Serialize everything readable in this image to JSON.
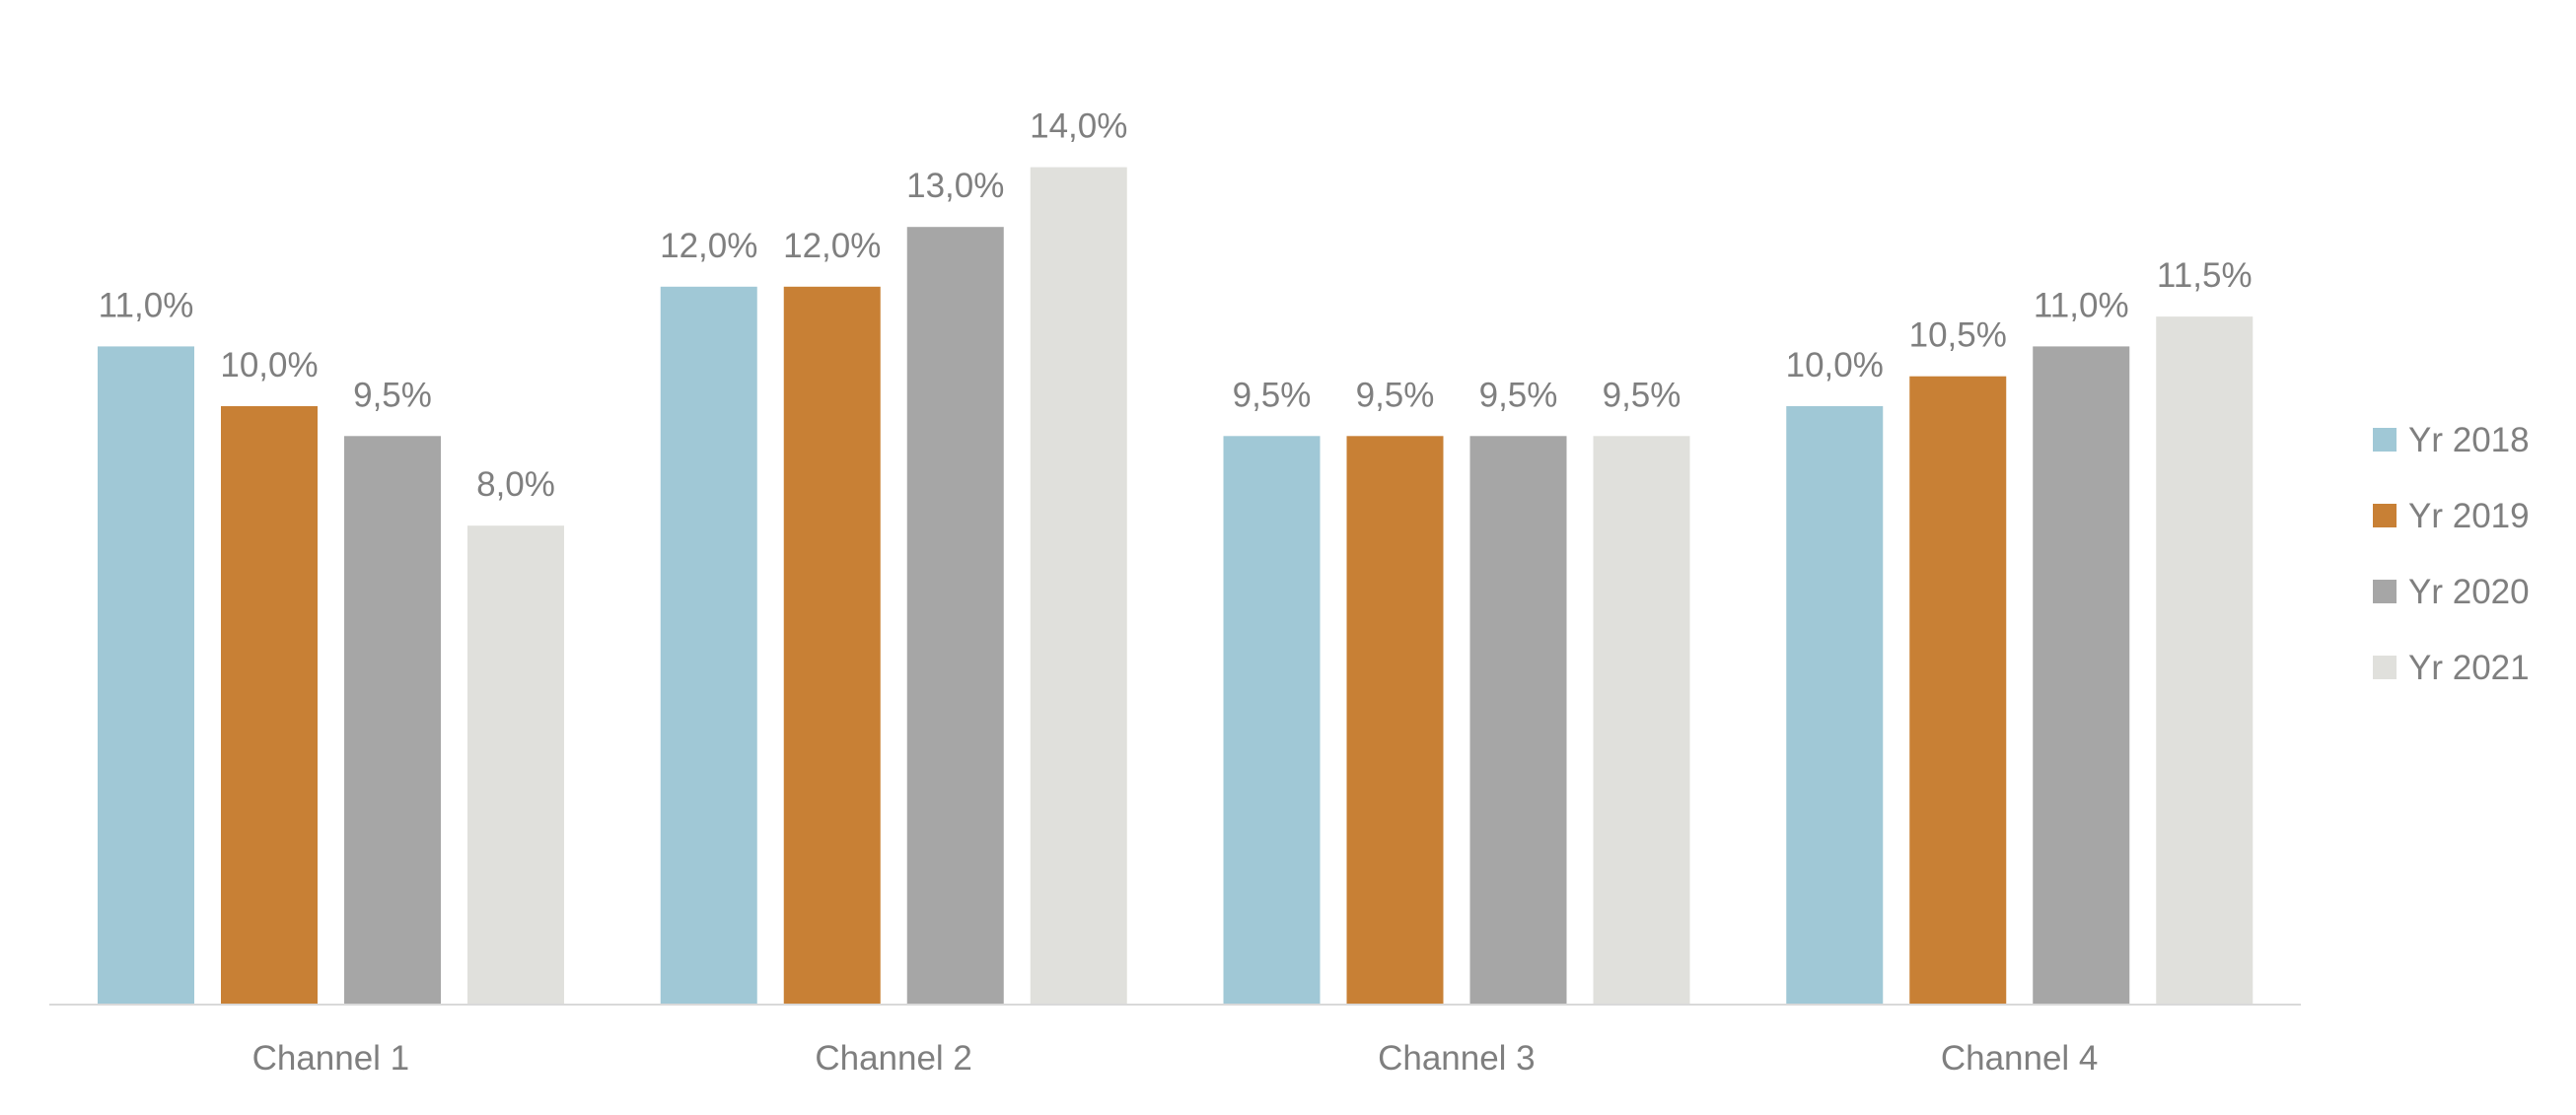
{
  "chart_data": {
    "type": "bar",
    "title": "",
    "xlabel": "",
    "ylabel": "",
    "categories": [
      "Channel 1",
      "Channel 2",
      "Channel 3",
      "Channel 4"
    ],
    "series": [
      {
        "name": "Yr 2018",
        "color": "#A0C8D6",
        "values": [
          11.0,
          12.0,
          9.5,
          10.0
        ],
        "labels": [
          "11,0%",
          "12,0%",
          "9,5%",
          "10,0%"
        ]
      },
      {
        "name": "Yr 2019",
        "color": "#C88035",
        "values": [
          10.0,
          12.0,
          9.5,
          10.5
        ],
        "labels": [
          "10,0%",
          "12,0%",
          "9,5%",
          "10,5%"
        ]
      },
      {
        "name": "Yr 2020",
        "color": "#A6A6A6",
        "values": [
          9.5,
          13.0,
          9.5,
          11.0
        ],
        "labels": [
          "9,5%",
          "13,0%",
          "9,5%",
          "11,0%"
        ]
      },
      {
        "name": "Yr 2021",
        "color": "#E0E0DC",
        "values": [
          8.0,
          14.0,
          9.5,
          11.5
        ],
        "labels": [
          "8,0%",
          "14,0%",
          "9,5%",
          "11,5%"
        ]
      }
    ],
    "ylim": [
      0,
      14
    ],
    "grid": false,
    "legend": "right",
    "label_color": "#7F7F7F",
    "axis_color": "#D9D9D9"
  }
}
